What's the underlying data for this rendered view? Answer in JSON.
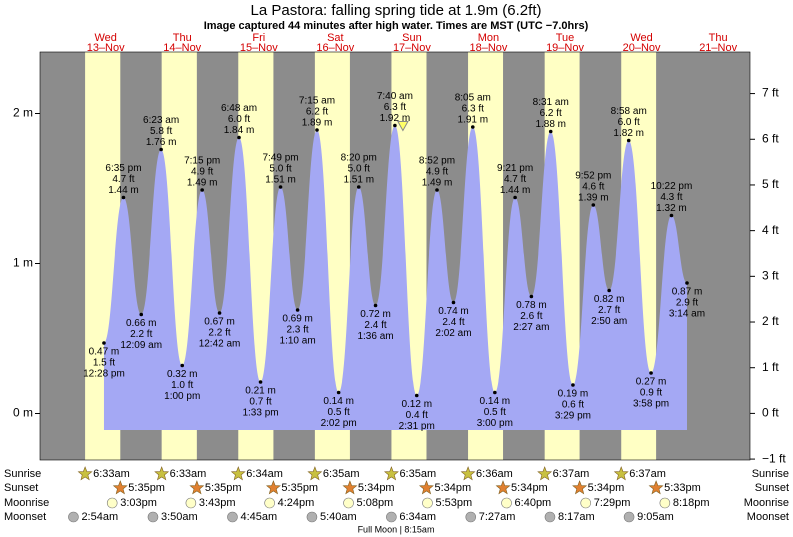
{
  "chart_data": {
    "type": "tide",
    "title": "La Pastora: falling  spring tide at 1.9m (6.2ft)",
    "subtitle": "Image captured 44 minutes after high water. Times are MST (UTC −7.0hrs)",
    "days": [
      {
        "weekday": "Wed",
        "date": "13–Nov"
      },
      {
        "weekday": "Thu",
        "date": "14–Nov"
      },
      {
        "weekday": "Fri",
        "date": "15–Nov"
      },
      {
        "weekday": "Sat",
        "date": "16–Nov"
      },
      {
        "weekday": "Sun",
        "date": "17–Nov"
      },
      {
        "weekday": "Mon",
        "date": "18–Nov"
      },
      {
        "weekday": "Tue",
        "date": "19–Nov"
      },
      {
        "weekday": "Wed",
        "date": "20–Nov"
      },
      {
        "weekday": "Thu",
        "date": "21–Nov"
      }
    ],
    "ylim": [
      -0.31,
      2.41
    ],
    "yticks": [
      {
        "value": 0,
        "label": "0 m"
      },
      {
        "value": 1,
        "label": "1 m"
      },
      {
        "value": 2,
        "label": "2 m"
      }
    ],
    "y2lim": [
      -1.02,
      7.91
    ],
    "y2ticks": [
      {
        "value": -1,
        "label": "−1 ft"
      },
      {
        "value": 0,
        "label": "0 ft"
      },
      {
        "value": 1,
        "label": "1 ft"
      },
      {
        "value": 2,
        "label": "2 ft"
      },
      {
        "value": 3,
        "label": "3 ft"
      },
      {
        "value": 4,
        "label": "4 ft"
      },
      {
        "value": 5,
        "label": "5 ft"
      },
      {
        "value": 6,
        "label": "6 ft"
      },
      {
        "value": 7,
        "label": "7 ft"
      }
    ],
    "fill_color": "#a4a8f4",
    "day_color": "#ffffc4",
    "night_color": "#8c8c8c",
    "extremes": {
      "day": [
        0,
        0,
        1,
        1,
        1,
        1,
        2,
        2,
        2,
        2,
        3,
        3,
        3,
        3,
        4,
        4,
        4,
        4,
        5,
        5,
        5,
        5,
        6,
        6,
        6,
        6,
        7,
        7,
        7,
        7,
        8
      ],
      "times": [
        "12:28 pm",
        "6:35 pm",
        "12:09 am",
        "6:23 am",
        "1:00 pm",
        "7:15 pm",
        "12:42 am",
        "6:48 am",
        "1:33 pm",
        "7:49 pm",
        "1:10 am",
        "7:15 am",
        "2:02 pm",
        "8:20 pm",
        "1:36 am",
        "7:40 am",
        "2:31 pm",
        "8:52 pm",
        "2:02 am",
        "8:05 am",
        "3:00 pm",
        "9:21 pm",
        "2:27 am",
        "8:31 am",
        "3:29 pm",
        "9:52 pm",
        "2:50 am",
        "8:58 am",
        "3:58 pm",
        "10:22 pm",
        "3:14 am"
      ],
      "values": [
        0.47,
        1.44,
        0.66,
        1.76,
        0.32,
        1.49,
        0.67,
        1.84,
        0.21,
        1.51,
        0.69,
        1.89,
        0.14,
        1.51,
        0.72,
        1.92,
        0.12,
        1.49,
        0.74,
        1.91,
        0.14,
        1.44,
        0.78,
        1.88,
        0.19,
        1.39,
        0.82,
        1.82,
        0.27,
        1.32,
        0.87
      ],
      "value_labels": [
        "0.47 m",
        "1.44 m",
        "0.66 m",
        "1.76 m",
        "0.32 m",
        "1.49 m",
        "0.67 m",
        "1.84 m",
        "0.21 m",
        "1.51 m",
        "0.69 m",
        "1.89 m",
        "0.14 m",
        "1.51 m",
        "0.72 m",
        "1.92 m",
        "0.12 m",
        "1.49 m",
        "0.74 m",
        "1.91 m",
        "0.14 m",
        "1.44 m",
        "0.78 m",
        "1.88 m",
        "0.19 m",
        "1.39 m",
        "0.82 m",
        "1.82 m",
        "0.27 m",
        "1.32 m",
        "0.87 m"
      ],
      "ft_labels": [
        "1.5 ft",
        "4.7 ft",
        "2.2 ft",
        "5.8 ft",
        "1.0 ft",
        "4.9 ft",
        "2.2 ft",
        "6.0 ft",
        "0.7 ft",
        "5.0 ft",
        "2.3 ft",
        "6.2 ft",
        "0.5 ft",
        "5.0 ft",
        "2.4 ft",
        "6.3 ft",
        "0.4 ft",
        "4.9 ft",
        "2.4 ft",
        "6.3 ft",
        "0.5 ft",
        "4.7 ft",
        "2.6 ft",
        "6.2 ft",
        "0.6 ft",
        "4.6 ft",
        "2.7 ft",
        "6.0 ft",
        "0.9 ft",
        "4.3 ft",
        "2.9 ft"
      ]
    },
    "sun": {
      "sunrise_label": "Sunrise",
      "sunset_label": "Sunset",
      "sunrise": [
        "6:33am",
        "6:33am",
        "6:34am",
        "6:35am",
        "6:35am",
        "6:36am",
        "6:37am",
        "6:37am"
      ],
      "sunset": [
        "5:35pm",
        "5:35pm",
        "5:35pm",
        "5:34pm",
        "5:34pm",
        "5:34pm",
        "5:34pm",
        "5:33pm"
      ]
    },
    "moon": {
      "moonrise_label": "Moonrise",
      "moonset_label": "Moonset",
      "moonrise": [
        "3:03pm",
        "3:43pm",
        "4:24pm",
        "5:08pm",
        "5:53pm",
        "6:40pm",
        "7:29pm",
        "8:18pm"
      ],
      "moonset": [
        "2:54am",
        "3:50am",
        "4:45am",
        "5:40am",
        "6:34am",
        "7:27am",
        "8:17am",
        "9:05am"
      ],
      "phase": "Full Moon | 8:15am"
    }
  }
}
